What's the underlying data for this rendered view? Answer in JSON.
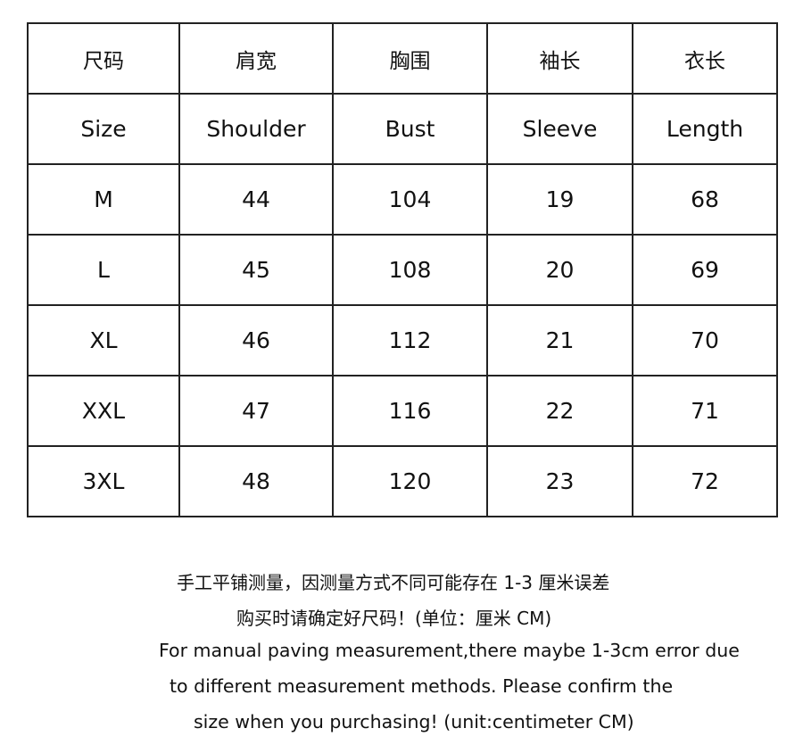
{
  "table": {
    "header_cn": [
      "尺码",
      "肩宽",
      "胸围",
      "袖长",
      "衣长"
    ],
    "header_en": [
      "Size",
      "Shoulder",
      "Bust",
      "Sleeve",
      "Length"
    ],
    "rows": [
      [
        "M",
        "44",
        "104",
        "19",
        "68"
      ],
      [
        "L",
        "45",
        "108",
        "20",
        "69"
      ],
      [
        "XL",
        "46",
        "112",
        "21",
        "70"
      ],
      [
        "XXL",
        "47",
        "116",
        "22",
        "71"
      ],
      [
        "3XL",
        "48",
        "120",
        "23",
        "72"
      ]
    ]
  },
  "notes": {
    "cn_line1": "手工平铺测量，因测量方式不同可能存在 1-3 厘米误差",
    "cn_line2": "购买时请确定好尺码！(单位：厘米 CM)",
    "en_line1": "For manual paving measurement,there maybe 1-3cm error due",
    "en_line2": "to different measurement methods. Please confirm the",
    "en_line3": "size when you purchasing! (unit:centimeter CM)"
  }
}
